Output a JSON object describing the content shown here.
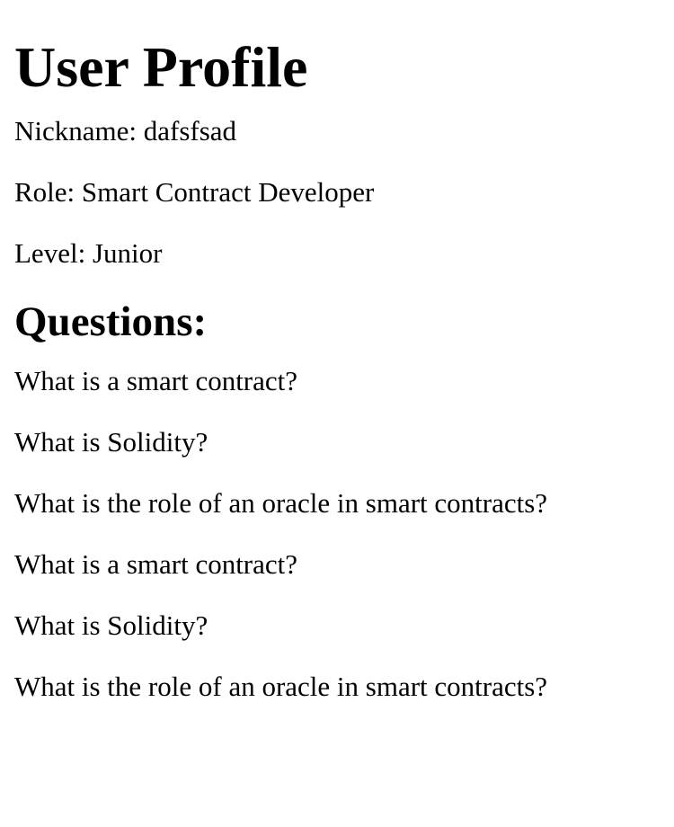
{
  "page": {
    "title": "User Profile"
  },
  "profile": {
    "nickname_label": "Nickname:",
    "nickname": "dafsfsad",
    "role_label": "Role:",
    "role": "Smart Contract Developer",
    "level_label": "Level:",
    "level": "Junior"
  },
  "questions": {
    "heading": "Questions:",
    "items": [
      "What is a smart contract?",
      "What is Solidity?",
      "What is the role of an oracle in smart contracts?",
      "What is a smart contract?",
      "What is Solidity?",
      "What is the role of an oracle in smart contracts?"
    ]
  }
}
